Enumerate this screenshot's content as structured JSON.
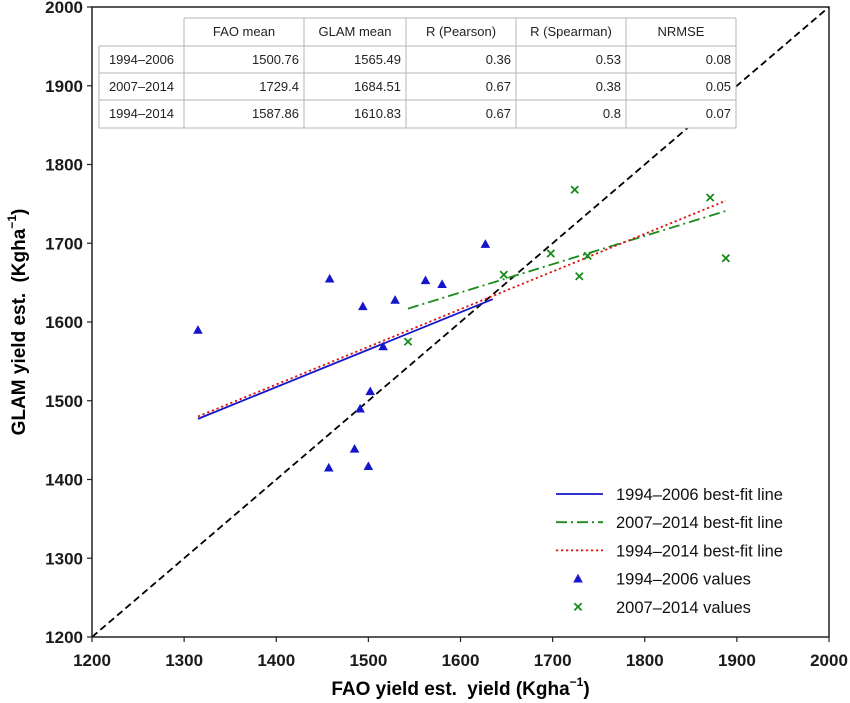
{
  "chart_data": {
    "type": "scatter",
    "title": "",
    "xlabel": "FAO yield est.",
    "xlabel_suffix": "yield (Kgha",
    "ylabel": "GLAM yield est.",
    "ylabel_unit": "(Kgha",
    "unit_exponent": "−1",
    "unit_close": ")",
    "xlim": [
      1200,
      2000
    ],
    "ylim": [
      1200,
      2000
    ],
    "xticks": [
      "1200",
      "1300",
      "1400",
      "1500",
      "1600",
      "1700",
      "1800",
      "1900",
      "2000"
    ],
    "yticks": [
      "1200",
      "1300",
      "1400",
      "1500",
      "1600",
      "1700",
      "1800",
      "1900",
      "2000"
    ],
    "grid": false,
    "legend_position": "bottom-right",
    "identity_line": {
      "from": [
        1200,
        1200
      ],
      "to": [
        2000,
        2000
      ],
      "style": "dashed",
      "color": "#000000"
    },
    "series": [
      {
        "name": "1994–2006 values",
        "marker": "triangle",
        "color": "#1515cc",
        "points": [
          [
            1315,
            1590
          ],
          [
            1458,
            1655
          ],
          [
            1494,
            1620
          ],
          [
            1529,
            1628
          ],
          [
            1562,
            1653
          ],
          [
            1580,
            1648
          ],
          [
            1627,
            1699
          ],
          [
            1516,
            1569
          ],
          [
            1502,
            1512
          ],
          [
            1491,
            1490
          ],
          [
            1485,
            1439
          ],
          [
            1457,
            1415
          ],
          [
            1500,
            1417
          ]
        ]
      },
      {
        "name": "2007–2014 values",
        "marker": "x",
        "color": "#1a8a1a",
        "points": [
          [
            1724,
            1768
          ],
          [
            1871,
            1758
          ],
          [
            1888,
            1681
          ],
          [
            1698,
            1687
          ],
          [
            1738,
            1684
          ],
          [
            1729,
            1658
          ],
          [
            1647,
            1660
          ],
          [
            1543,
            1575
          ]
        ]
      }
    ],
    "lines": [
      {
        "name": "1994–2006 best-fit line",
        "style": "solid",
        "color": "#1515cc",
        "from": [
          1315,
          1477
        ],
        "to": [
          1635,
          1629
        ]
      },
      {
        "name": "2007–2014 best-fit line",
        "style": "dashdot",
        "color": "#1a8a1a",
        "from": [
          1543,
          1617
        ],
        "to": [
          1888,
          1741
        ]
      },
      {
        "name": "1994–2014 best-fit line",
        "style": "dotted",
        "color": "#dd1111",
        "from": [
          1315,
          1480
        ],
        "to": [
          1888,
          1754
        ]
      }
    ],
    "legend_order": [
      "1994–2006 best-fit line",
      "2007–2014 best-fit line",
      "1994–2014 best-fit line",
      "1994–2006 values",
      "2007–2014 values"
    ],
    "table": {
      "columns": [
        "",
        "FAO mean",
        "GLAM mean",
        "R (Pearson)",
        "R (Spearman)",
        "NRMSE"
      ],
      "rows": [
        [
          "1994–2006",
          "1500.76",
          "1565.49",
          "0.36",
          "0.53",
          "0.08"
        ],
        [
          "2007–2014",
          "1729.4",
          "1684.51",
          "0.67",
          "0.38",
          "0.05"
        ],
        [
          "1994–2014",
          "1587.86",
          "1610.83",
          "0.67",
          "0.8",
          "0.07"
        ]
      ]
    }
  }
}
